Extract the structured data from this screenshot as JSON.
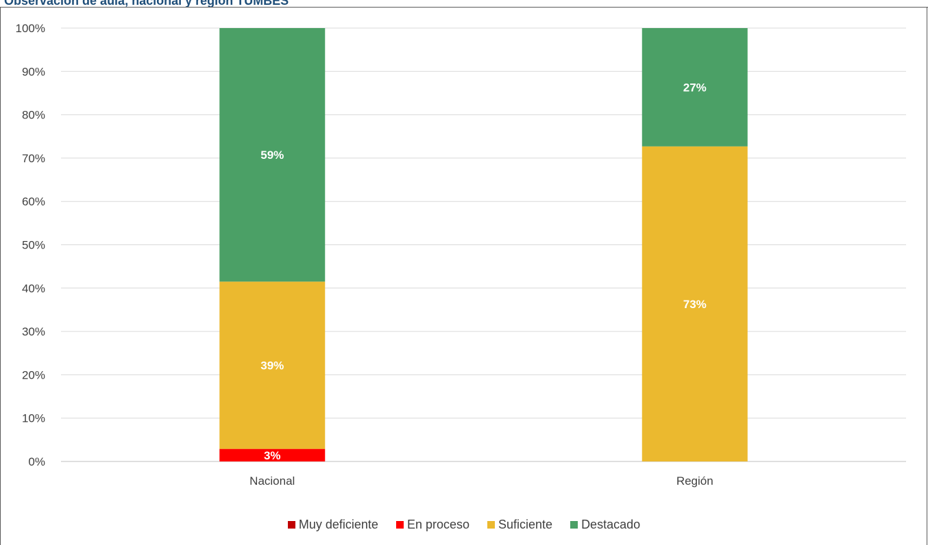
{
  "chart_data": {
    "type": "bar",
    "stacked": true,
    "title": "Observación de aula, nacional y región TUMBES",
    "categories": [
      "Nacional",
      "Región"
    ],
    "y_ticks": [
      "0%",
      "10%",
      "20%",
      "30%",
      "40%",
      "50%",
      "60%",
      "70%",
      "80%",
      "90%",
      "100%"
    ],
    "ylim": [
      0,
      100
    ],
    "grid": true,
    "legend_position": "bottom",
    "series": [
      {
        "name": "Muy deficiente",
        "color": "#c00000",
        "values": [
          0,
          0
        ],
        "labels": [
          "",
          ""
        ]
      },
      {
        "name": "En proceso",
        "color": "#ff0000",
        "values": [
          2.9,
          0
        ],
        "labels": [
          "3%",
          ""
        ]
      },
      {
        "name": "Suficiente",
        "color": "#ebb92f",
        "values": [
          38.6,
          72.7
        ],
        "labels": [
          "39%",
          "73%"
        ]
      },
      {
        "name": "Destacado",
        "color": "#4ba066",
        "values": [
          58.5,
          27.3
        ],
        "labels": [
          "59%",
          "27%"
        ]
      }
    ]
  }
}
